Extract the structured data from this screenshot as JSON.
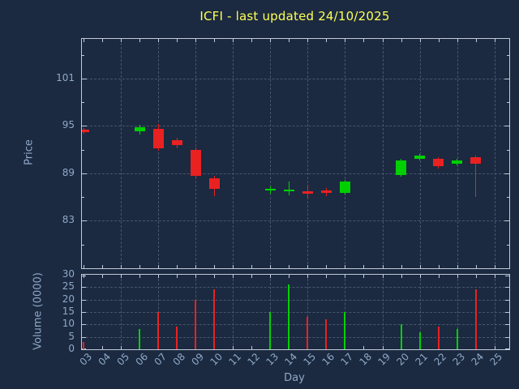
{
  "title": "ICFI - last updated 24/10/2025",
  "colors": {
    "background": "#1b2a40",
    "title": "#ffff55",
    "axis_text": "#8fa8c8",
    "border": "#c2cad8",
    "grid": "#46566e",
    "up": "#00d000",
    "down": "#ea2121"
  },
  "chart_data": {
    "type": "candlestick",
    "title": "ICFI - last updated 24/10/2025",
    "xlabel": "Day",
    "price_ylabel": "Price",
    "volume_ylabel": "Volume (0000)",
    "x_ticks": [
      "03",
      "04",
      "05",
      "06",
      "07",
      "08",
      "09",
      "10",
      "11",
      "12",
      "13",
      "14",
      "15",
      "16",
      "17",
      "18",
      "19",
      "20",
      "21",
      "22",
      "23",
      "24",
      "25"
    ],
    "x_first_day": 3,
    "xlim": [
      2.9,
      25.8
    ],
    "price_ticks": [
      83,
      89,
      95,
      101
    ],
    "price_ylim": [
      77,
      106
    ],
    "volume_ticks": [
      0,
      5,
      10,
      15,
      20,
      25,
      30
    ],
    "volume_ylim": [
      0,
      30
    ],
    "grid": "dashed; horizontal at price/volume ticks, vertical at odd days",
    "legend": "none",
    "series": [
      {
        "day": 3,
        "open": 94.5,
        "high": 94.7,
        "low": 94.0,
        "close": 94.2,
        "volume": 3
      },
      {
        "day": 6,
        "open": 94.3,
        "high": 95.1,
        "low": 93.9,
        "close": 94.8,
        "volume": 8
      },
      {
        "day": 7,
        "open": 94.6,
        "high": 95.2,
        "low": 91.9,
        "close": 92.2,
        "volume": 15
      },
      {
        "day": 8,
        "open": 93.2,
        "high": 93.5,
        "low": 92.2,
        "close": 92.6,
        "volume": 9
      },
      {
        "day": 9,
        "open": 92.0,
        "high": 92.3,
        "low": 88.4,
        "close": 88.7,
        "volume": 20
      },
      {
        "day": 10,
        "open": 88.4,
        "high": 88.7,
        "low": 86.1,
        "close": 87.0,
        "volume": 24
      },
      {
        "day": 13,
        "open": 86.8,
        "high": 87.3,
        "low": 86.4,
        "close": 87.0,
        "volume": 15
      },
      {
        "day": 14,
        "open": 86.7,
        "high": 88.0,
        "low": 86.2,
        "close": 86.9,
        "volume": 26
      },
      {
        "day": 15,
        "open": 86.7,
        "high": 87.6,
        "low": 85.8,
        "close": 86.4,
        "volume": 13
      },
      {
        "day": 16,
        "open": 86.8,
        "high": 87.1,
        "low": 86.1,
        "close": 86.5,
        "volume": 12
      },
      {
        "day": 17,
        "open": 86.5,
        "high": 88.2,
        "low": 86.3,
        "close": 88.0,
        "volume": 15
      },
      {
        "day": 20,
        "open": 88.8,
        "high": 90.8,
        "low": 88.6,
        "close": 90.6,
        "volume": 10
      },
      {
        "day": 21,
        "open": 90.8,
        "high": 91.4,
        "low": 90.6,
        "close": 91.2,
        "volume": 7
      },
      {
        "day": 22,
        "open": 90.8,
        "high": 91.0,
        "low": 89.6,
        "close": 89.9,
        "volume": 9
      },
      {
        "day": 23,
        "open": 90.2,
        "high": 90.8,
        "low": 90.0,
        "close": 90.6,
        "volume": 8
      },
      {
        "day": 24,
        "open": 91.0,
        "high": 91.2,
        "low": 86.0,
        "close": 90.2,
        "volume": 24
      }
    ]
  }
}
